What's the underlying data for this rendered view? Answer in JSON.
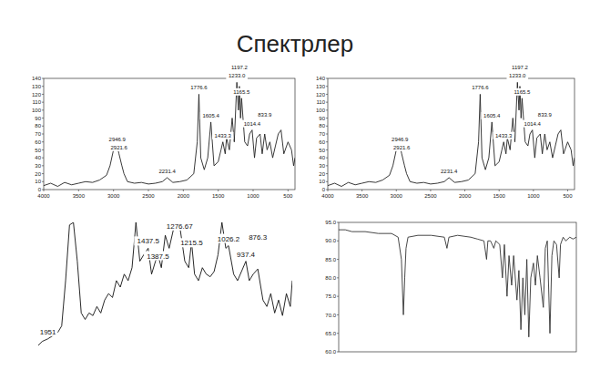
{
  "title": "Спектрлер",
  "chart_data": [
    {
      "type": "line",
      "color": "#222222",
      "x": [
        4000,
        3900,
        3800,
        3700,
        3600,
        3500,
        3400,
        3300,
        3200,
        3100,
        3050,
        3000,
        2946.9,
        2921.6,
        2880,
        2850,
        2800,
        2700,
        2600,
        2500,
        2400,
        2300,
        2231.4,
        2150,
        2050,
        1950,
        1850,
        1800,
        1776.6,
        1750,
        1700,
        1650,
        1605.4,
        1560,
        1500,
        1460,
        1433.3,
        1400,
        1380,
        1340,
        1300,
        1270,
        1233.0,
        1210,
        1197.2,
        1180,
        1165.5,
        1120,
        1080,
        1050,
        1014.4,
        980,
        950,
        900,
        870,
        833.9,
        800,
        760,
        720,
        680,
        640,
        600,
        560,
        500,
        450,
        420,
        400
      ],
      "values": [
        5,
        8,
        4,
        9,
        6,
        8,
        10,
        9,
        12,
        18,
        30,
        50,
        55,
        45,
        30,
        20,
        10,
        8,
        9,
        7,
        8,
        10,
        15,
        9,
        10,
        12,
        20,
        60,
        120,
        40,
        25,
        40,
        85,
        30,
        35,
        50,
        60,
        45,
        65,
        50,
        90,
        60,
        135,
        100,
        130,
        90,
        115,
        60,
        55,
        70,
        75,
        40,
        65,
        70,
        45,
        70,
        50,
        60,
        40,
        55,
        70,
        75,
        45,
        60,
        50,
        30,
        40
      ],
      "xlim": [
        4000,
        400
      ],
      "xticks": [
        4000,
        3500,
        3000,
        2500,
        2000,
        1500,
        1000,
        500
      ],
      "ylim": [
        0,
        140
      ],
      "yticks": [
        0,
        10,
        20,
        30,
        40,
        50,
        60,
        70,
        80,
        90,
        100,
        110,
        120,
        130,
        140
      ],
      "annotations": [
        {
          "text": "2946.9",
          "x": 2946.9,
          "y": 55
        },
        {
          "text": "2921.6",
          "x": 2921.6,
          "y": 45
        },
        {
          "text": "2231.4",
          "x": 2231.4,
          "y": 15
        },
        {
          "text": "1776.6",
          "x": 1776.6,
          "y": 120
        },
        {
          "text": "1605.4",
          "x": 1605.4,
          "y": 85
        },
        {
          "text": "1433.3",
          "x": 1433.3,
          "y": 60
        },
        {
          "text": "1233.0",
          "x": 1233.0,
          "y": 135
        },
        {
          "text": "1197.2",
          "x": 1197.2,
          "y": 130
        },
        {
          "text": "1165.5",
          "x": 1165.5,
          "y": 115
        },
        {
          "text": "1014.4",
          "x": 1014.4,
          "y": 75
        },
        {
          "text": "833.9",
          "x": 833.9,
          "y": 70
        }
      ]
    },
    {
      "type": "line",
      "color": "#222222",
      "x": [
        4000,
        3900,
        3800,
        3700,
        3600,
        3500,
        3400,
        3300,
        3200,
        3100,
        3050,
        3000,
        2946.9,
        2921.6,
        2880,
        2850,
        2800,
        2700,
        2600,
        2500,
        2400,
        2300,
        2231.4,
        2150,
        2050,
        1950,
        1850,
        1800,
        1776.6,
        1750,
        1700,
        1650,
        1605.4,
        1560,
        1500,
        1460,
        1433.3,
        1400,
        1380,
        1340,
        1300,
        1270,
        1233.0,
        1210,
        1197.2,
        1180,
        1165.5,
        1120,
        1080,
        1050,
        1014.4,
        980,
        950,
        900,
        870,
        833.9,
        800,
        760,
        720,
        680,
        640,
        600,
        560,
        500,
        450,
        420,
        400
      ],
      "values": [
        5,
        8,
        4,
        9,
        6,
        8,
        10,
        9,
        12,
        18,
        30,
        50,
        55,
        45,
        30,
        20,
        10,
        8,
        9,
        7,
        8,
        10,
        15,
        9,
        10,
        12,
        20,
        60,
        120,
        40,
        25,
        40,
        85,
        30,
        35,
        50,
        60,
        45,
        65,
        50,
        90,
        60,
        135,
        100,
        130,
        90,
        115,
        60,
        55,
        70,
        75,
        40,
        65,
        70,
        45,
        70,
        50,
        60,
        40,
        55,
        70,
        75,
        45,
        60,
        50,
        30,
        40
      ],
      "xlim": [
        4000,
        400
      ],
      "xticks": [
        4000,
        3500,
        3000,
        2500,
        2000,
        1500,
        1000,
        500
      ],
      "ylim": [
        0,
        140
      ],
      "yticks": [
        0,
        10,
        20,
        30,
        40,
        50,
        60,
        70,
        80,
        90,
        100,
        110,
        120,
        130,
        140
      ],
      "annotations": [
        {
          "text": "2946.9",
          "x": 2946.9,
          "y": 55
        },
        {
          "text": "2921.6",
          "x": 2921.6,
          "y": 45
        },
        {
          "text": "2231.4",
          "x": 2231.4,
          "y": 15
        },
        {
          "text": "1776.6",
          "x": 1776.6,
          "y": 120
        },
        {
          "text": "1605.4",
          "x": 1605.4,
          "y": 85
        },
        {
          "text": "1433.3",
          "x": 1433.3,
          "y": 60
        },
        {
          "text": "1233.0",
          "x": 1233.0,
          "y": 135
        },
        {
          "text": "1197.2",
          "x": 1197.2,
          "y": 130
        },
        {
          "text": "1165.5",
          "x": 1165.5,
          "y": 115
        },
        {
          "text": "1014.4",
          "x": 1014.4,
          "y": 75
        },
        {
          "text": "833.9",
          "x": 833.9,
          "y": 70
        }
      ]
    },
    {
      "type": "line",
      "color": "#111111",
      "tick_labels": false,
      "x": [
        2000,
        1980,
        1951,
        1930,
        1900,
        1880,
        1860,
        1840,
        1820,
        1800,
        1780,
        1760,
        1740,
        1720,
        1700,
        1680,
        1660,
        1640,
        1620,
        1600,
        1580,
        1560,
        1540,
        1520,
        1500,
        1480,
        1460,
        1437.5,
        1420,
        1400,
        1387.5,
        1370,
        1350,
        1330,
        1300,
        1276.67,
        1250,
        1230,
        1215.5,
        1200,
        1180,
        1160,
        1140,
        1120,
        1100,
        1080,
        1060,
        1040,
        1026.2,
        1000,
        980,
        960,
        937.4,
        920,
        900,
        876.3,
        850,
        830,
        810,
        790,
        770,
        750,
        730,
        710,
        700
      ],
      "values": [
        5,
        8,
        10,
        12,
        15,
        20,
        55,
        98,
        100,
        70,
        30,
        25,
        30,
        28,
        35,
        30,
        40,
        45,
        42,
        55,
        50,
        60,
        55,
        65,
        100,
        70,
        75,
        80,
        60,
        70,
        75,
        65,
        90,
        80,
        100,
        98,
        70,
        65,
        85,
        60,
        55,
        65,
        60,
        58,
        62,
        75,
        100,
        80,
        82,
        60,
        55,
        62,
        70,
        55,
        60,
        64,
        40,
        35,
        45,
        30,
        40,
        28,
        45,
        35,
        55
      ],
      "xlim": [
        2000,
        700
      ],
      "ylim": [
        0,
        100
      ],
      "annotations": [
        {
          "text": "1951",
          "x": 1951,
          "y": 10
        },
        {
          "text": "1276.67",
          "x": 1276.67,
          "y": 98
        },
        {
          "text": "1437.5",
          "x": 1437.5,
          "y": 80
        },
        {
          "text": "1387.5",
          "x": 1387.5,
          "y": 75
        },
        {
          "text": "1215.5",
          "x": 1215.5,
          "y": 85
        },
        {
          "text": "1026.2",
          "x": 1026.2,
          "y": 82
        },
        {
          "text": "937.4",
          "x": 937.4,
          "y": 70
        },
        {
          "text": "876.3",
          "x": 876.3,
          "y": 64
        }
      ]
    },
    {
      "type": "line",
      "color": "#333333",
      "tick_labels": "y",
      "x": [
        4000,
        3900,
        3800,
        3600,
        3400,
        3200,
        3100,
        3050,
        3020,
        3000,
        2980,
        2950,
        2800,
        2600,
        2400,
        2360,
        2330,
        2200,
        2000,
        1900,
        1800,
        1760,
        1740,
        1700,
        1650,
        1620,
        1560,
        1520,
        1490,
        1450,
        1420,
        1380,
        1350,
        1300,
        1270,
        1240,
        1210,
        1180,
        1150,
        1120,
        1090,
        1050,
        1020,
        990,
        950,
        900,
        870,
        840,
        800,
        770,
        740,
        700,
        660,
        640,
        600,
        560,
        500,
        450,
        400
      ],
      "values": [
        93,
        93,
        92.5,
        92.5,
        92,
        92,
        91,
        85,
        70,
        80,
        88,
        91,
        91.5,
        91.5,
        91,
        88,
        91,
        91.5,
        91,
        90.5,
        90,
        85,
        90,
        90,
        88,
        90,
        89,
        80,
        89,
        75,
        86,
        78,
        86,
        74,
        82,
        66,
        80,
        70,
        85,
        64,
        80,
        84,
        78,
        86,
        80,
        72,
        88,
        90,
        65,
        86,
        90,
        89,
        80,
        89,
        91,
        90,
        91,
        90.5,
        91
      ],
      "xlim": [
        4000,
        400
      ],
      "ylim": [
        60,
        95
      ],
      "yticks": [
        {
          "value": 60,
          "label": "60.0"
        },
        {
          "value": 65,
          "label": "65.0"
        },
        {
          "value": 70,
          "label": "70.0"
        },
        {
          "value": 75,
          "label": "75.0"
        },
        {
          "value": 80,
          "label": "80.0"
        },
        {
          "value": 85,
          "label": "85.0"
        },
        {
          "value": 90,
          "label": "90.0"
        },
        {
          "value": 95,
          "label": "95.0"
        }
      ]
    }
  ]
}
